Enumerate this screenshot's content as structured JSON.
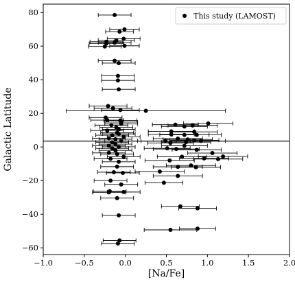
{
  "chart_data": {
    "type": "scatter",
    "xlabel": "[Na/Fe]",
    "ylabel": "Galactic Latitude",
    "xlim": [
      -1.0,
      2.0
    ],
    "ylim": [
      -64,
      85
    ],
    "xticks": [
      -1.0,
      -0.5,
      0.0,
      0.5,
      1.0,
      1.5,
      2.0
    ],
    "yticks": [
      -60,
      -40,
      -20,
      0,
      20,
      40,
      60,
      80
    ],
    "xtick_labels": [
      "−1.0",
      "−0.5",
      "0.0",
      "0.5",
      "1.0",
      "1.5",
      "2.0"
    ],
    "ytick_labels": [
      "−60",
      "−40",
      "−20",
      "0",
      "20",
      "40",
      "60",
      "80"
    ],
    "hline": 3.5,
    "grid": false,
    "legend": {
      "position": "top-right",
      "label": "This study (LAMOST)"
    },
    "series": [
      {
        "name": "This study (LAMOST)",
        "marker_color": "#000000",
        "points": [
          {
            "x": -0.13,
            "y": 78.5,
            "xerr": 0.2
          },
          {
            "x": -0.01,
            "y": 70.0,
            "xerr": 0.18
          },
          {
            "x": -0.07,
            "y": 68.6,
            "xerr": 0.17
          },
          {
            "x": -0.02,
            "y": 64.4,
            "xerr": 0.2
          },
          {
            "x": -0.11,
            "y": 63.5,
            "xerr": 0.22
          },
          {
            "x": -0.23,
            "y": 62.6,
            "xerr": 0.2
          },
          {
            "x": -0.13,
            "y": 62.1,
            "xerr": 0.2
          },
          {
            "x": -0.23,
            "y": 61.6,
            "xerr": 0.21
          },
          {
            "x": -0.01,
            "y": 60.2,
            "xerr": 0.18
          },
          {
            "x": -0.25,
            "y": 59.8,
            "xerr": 0.2
          },
          {
            "x": -0.13,
            "y": 51.3,
            "xerr": 0.2
          },
          {
            "x": -0.08,
            "y": 49.9,
            "xerr": 0.2
          },
          {
            "x": -0.09,
            "y": 42.3,
            "xerr": 0.2
          },
          {
            "x": -0.09,
            "y": 39.6,
            "xerr": 0.2
          },
          {
            "x": -0.08,
            "y": 34.3,
            "xerr": 0.2
          },
          {
            "x": -0.21,
            "y": 24.4,
            "xerr": 0.23
          },
          {
            "x": -0.15,
            "y": 23.0,
            "xerr": 0.23
          },
          {
            "x": -0.06,
            "y": 22.0,
            "xerr": 0.23
          },
          {
            "x": 0.25,
            "y": 21.5,
            "xerr": 0.97
          },
          {
            "x": -0.24,
            "y": 17.5,
            "xerr": 0.2
          },
          {
            "x": -0.22,
            "y": 16.0,
            "xerr": 0.2
          },
          {
            "x": -0.06,
            "y": 15.8,
            "xerr": 0.2
          },
          {
            "x": -0.05,
            "y": 14.8,
            "xerr": 0.2
          },
          {
            "x": -0.05,
            "y": 13.7,
            "xerr": 0.2
          },
          {
            "x": -0.17,
            "y": 13.0,
            "xerr": 0.2
          },
          {
            "x": -0.11,
            "y": 11.7,
            "xerr": 0.2
          },
          {
            "x": -0.08,
            "y": 10.5,
            "xerr": 0.2
          },
          {
            "x": -0.22,
            "y": 9.8,
            "xerr": 0.2
          },
          {
            "x": -0.1,
            "y": 8.5,
            "xerr": 0.2
          },
          {
            "x": -0.08,
            "y": 7.8,
            "xerr": 0.2
          },
          {
            "x": -0.16,
            "y": 7.0,
            "xerr": 0.2
          },
          {
            "x": -0.02,
            "y": 6.0,
            "xerr": 0.2
          },
          {
            "x": -0.2,
            "y": 5.2,
            "xerr": 0.2
          },
          {
            "x": -0.12,
            "y": 4.6,
            "xerr": 0.2
          },
          {
            "x": -0.05,
            "y": 3.6,
            "xerr": 0.2
          },
          {
            "x": -0.16,
            "y": 2.8,
            "xerr": 0.2
          },
          {
            "x": -0.12,
            "y": 1.7,
            "xerr": 0.2
          },
          {
            "x": -0.2,
            "y": 0.8,
            "xerr": 0.2
          },
          {
            "x": -0.08,
            "y": 0.1,
            "xerr": 0.2
          },
          {
            "x": -0.16,
            "y": -0.8,
            "xerr": 0.2
          },
          {
            "x": -0.12,
            "y": -2.0,
            "xerr": 0.2
          },
          {
            "x": -0.2,
            "y": -3.5,
            "xerr": 0.2
          },
          {
            "x": -0.1,
            "y": -4.2,
            "xerr": 0.2
          },
          {
            "x": -0.02,
            "y": -5.8,
            "xerr": 0.2
          },
          {
            "x": -0.18,
            "y": -7.0,
            "xerr": 0.2
          },
          {
            "x": -0.08,
            "y": -8.8,
            "xerr": 0.2
          },
          {
            "x": -0.1,
            "y": -11.7,
            "xerr": 0.2
          },
          {
            "x": -0.14,
            "y": -15.0,
            "xerr": 0.2
          },
          {
            "x": -0.03,
            "y": -15.4,
            "xerr": 0.2
          },
          {
            "x": -0.18,
            "y": -20.0,
            "xerr": 0.2
          },
          {
            "x": -0.05,
            "y": -22.3,
            "xerr": 0.2
          },
          {
            "x": -0.19,
            "y": -26.3,
            "xerr": 0.2
          },
          {
            "x": -0.2,
            "y": -27.0,
            "xerr": 0.2
          },
          {
            "x": -0.02,
            "y": -26.8,
            "xerr": 0.2
          },
          {
            "x": -0.1,
            "y": -30.4,
            "xerr": 0.2
          },
          {
            "x": -0.08,
            "y": -40.7,
            "xerr": 0.2
          },
          {
            "x": -0.07,
            "y": -55.6,
            "xerr": 0.2
          },
          {
            "x": -0.09,
            "y": -57.4,
            "xerr": 0.2
          },
          {
            "x": 0.61,
            "y": 13.3,
            "xerr": 0.28
          },
          {
            "x": 0.72,
            "y": 12.2,
            "xerr": 0.28
          },
          {
            "x": 0.82,
            "y": 12.8,
            "xerr": 0.3
          },
          {
            "x": 1.01,
            "y": 14.0,
            "xerr": 0.3
          },
          {
            "x": 0.56,
            "y": 9.3,
            "xerr": 0.28
          },
          {
            "x": 0.84,
            "y": 9.0,
            "xerr": 0.28
          },
          {
            "x": 0.56,
            "y": 7.5,
            "xerr": 0.28
          },
          {
            "x": 0.72,
            "y": 7.2,
            "xerr": 0.3
          },
          {
            "x": 0.87,
            "y": 7.2,
            "xerr": 0.3
          },
          {
            "x": 0.64,
            "y": 5.0,
            "xerr": 0.3
          },
          {
            "x": 0.76,
            "y": 4.5,
            "xerr": 0.3
          },
          {
            "x": 0.49,
            "y": 3.6,
            "xerr": 0.3
          },
          {
            "x": 0.92,
            "y": 3.6,
            "xerr": 0.3
          },
          {
            "x": 0.84,
            "y": 4.0,
            "xerr": 0.3
          },
          {
            "x": 0.74,
            "y": 2.9,
            "xerr": 0.3
          },
          {
            "x": 0.55,
            "y": 2.4,
            "xerr": 0.28
          },
          {
            "x": 0.72,
            "y": 0.7,
            "xerr": 0.28
          },
          {
            "x": 0.51,
            "y": -0.8,
            "xerr": 0.28
          },
          {
            "x": 0.62,
            "y": -1.2,
            "xerr": 0.28
          },
          {
            "x": 0.87,
            "y": -1.7,
            "xerr": 0.3
          },
          {
            "x": 1.06,
            "y": -3.6,
            "xerr": 0.3
          },
          {
            "x": 0.96,
            "y": -6.8,
            "xerr": 0.3
          },
          {
            "x": 0.69,
            "y": -5.8,
            "xerr": 0.3
          },
          {
            "x": 1.19,
            "y": -5.6,
            "xerr": 0.3
          },
          {
            "x": 1.13,
            "y": -7.2,
            "xerr": 0.3
          },
          {
            "x": 0.54,
            "y": -8.0,
            "xerr": 0.3
          },
          {
            "x": 0.8,
            "y": -11.0,
            "xerr": 0.3
          },
          {
            "x": 0.86,
            "y": -12.0,
            "xerr": 0.3
          },
          {
            "x": 0.64,
            "y": -11.8,
            "xerr": 0.3
          },
          {
            "x": 0.42,
            "y": -14.6,
            "xerr": 0.3
          },
          {
            "x": 0.64,
            "y": -17.2,
            "xerr": 0.3
          },
          {
            "x": 0.47,
            "y": -21.3,
            "xerr": 0.23
          },
          {
            "x": 0.67,
            "y": -35.3,
            "xerr": 0.23
          },
          {
            "x": 0.88,
            "y": -36.5,
            "xerr": 0.23
          },
          {
            "x": 0.55,
            "y": -49.3,
            "xerr": 0.32
          },
          {
            "x": 0.88,
            "y": -48.6,
            "xerr": 0.22
          }
        ]
      }
    ]
  }
}
